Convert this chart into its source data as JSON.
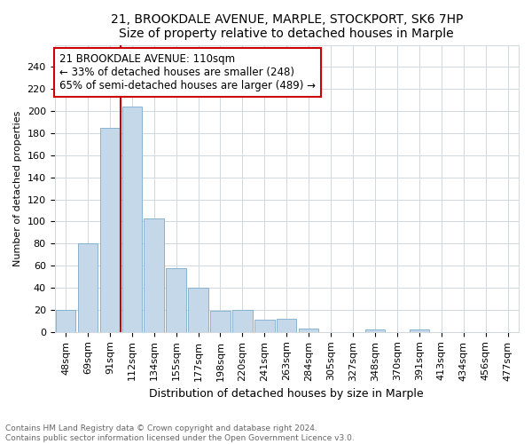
{
  "title1": "21, BROOKDALE AVENUE, MARPLE, STOCKPORT, SK6 7HP",
  "title2": "Size of property relative to detached houses in Marple",
  "xlabel": "Distribution of detached houses by size in Marple",
  "ylabel": "Number of detached properties",
  "footnote": "Contains HM Land Registry data © Crown copyright and database right 2024.\nContains public sector information licensed under the Open Government Licence v3.0.",
  "annotation_line1": "21 BROOKDALE AVENUE: 110sqm",
  "annotation_line2": "← 33% of detached houses are smaller (248)",
  "annotation_line3": "65% of semi-detached houses are larger (489) →",
  "categories": [
    "48sqm",
    "69sqm",
    "91sqm",
    "112sqm",
    "134sqm",
    "155sqm",
    "177sqm",
    "198sqm",
    "220sqm",
    "241sqm",
    "263sqm",
    "284sqm",
    "305sqm",
    "327sqm",
    "348sqm",
    "370sqm",
    "391sqm",
    "413sqm",
    "434sqm",
    "456sqm",
    "477sqm"
  ],
  "values": [
    20,
    80,
    185,
    204,
    103,
    58,
    40,
    19,
    20,
    11,
    12,
    3,
    0,
    0,
    2,
    0,
    2,
    0,
    0,
    0,
    0
  ],
  "bar_color": "#c5d8ea",
  "bar_edgecolor": "#7aaac8",
  "vline_color": "#cc0000",
  "annotation_box_edgecolor": "#cc0000",
  "vline_index": 3,
  "ylim": [
    0,
    260
  ],
  "yticks": [
    0,
    20,
    40,
    60,
    80,
    100,
    120,
    140,
    160,
    180,
    200,
    220,
    240
  ],
  "grid_color": "#d0d8e0",
  "title1_fontsize": 10,
  "title2_fontsize": 9,
  "xlabel_fontsize": 9,
  "ylabel_fontsize": 8,
  "tick_fontsize": 8,
  "annot_fontsize": 8.5
}
